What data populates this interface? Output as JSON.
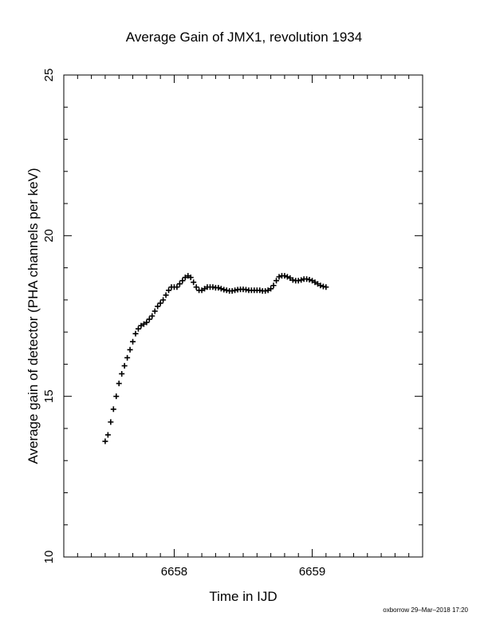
{
  "chart_data": {
    "type": "scatter",
    "title": "Average Gain of JMX1, revolution 1934",
    "xlabel": "Time in IJD",
    "ylabel": "Average gain of detector (PHA channels per keV)",
    "xlim": [
      6657.2,
      6659.8
    ],
    "ylim": [
      10,
      25
    ],
    "xticks": [
      6658,
      6659
    ],
    "yticks": [
      10,
      15,
      20,
      25
    ],
    "x_minor_step": 0.1,
    "y_minor_step": 1,
    "marker": "+",
    "marker_color": "#000000",
    "grid": false,
    "points": [
      [
        6657.5,
        13.6
      ],
      [
        6657.52,
        13.8
      ],
      [
        6657.54,
        14.2
      ],
      [
        6657.56,
        14.6
      ],
      [
        6657.58,
        15.0
      ],
      [
        6657.6,
        15.4
      ],
      [
        6657.62,
        15.7
      ],
      [
        6657.64,
        15.95
      ],
      [
        6657.66,
        16.2
      ],
      [
        6657.68,
        16.45
      ],
      [
        6657.7,
        16.7
      ],
      [
        6657.72,
        16.95
      ],
      [
        6657.74,
        17.1
      ],
      [
        6657.76,
        17.2
      ],
      [
        6657.78,
        17.25
      ],
      [
        6657.8,
        17.3
      ],
      [
        6657.82,
        17.4
      ],
      [
        6657.84,
        17.5
      ],
      [
        6657.86,
        17.65
      ],
      [
        6657.88,
        17.8
      ],
      [
        6657.9,
        17.9
      ],
      [
        6657.92,
        18.0
      ],
      [
        6657.94,
        18.15
      ],
      [
        6657.96,
        18.3
      ],
      [
        6657.98,
        18.4
      ],
      [
        6658.0,
        18.4
      ],
      [
        6658.02,
        18.4
      ],
      [
        6658.04,
        18.5
      ],
      [
        6658.06,
        18.6
      ],
      [
        6658.08,
        18.7
      ],
      [
        6658.1,
        18.75
      ],
      [
        6658.12,
        18.7
      ],
      [
        6658.14,
        18.55
      ],
      [
        6658.16,
        18.4
      ],
      [
        6658.18,
        18.3
      ],
      [
        6658.2,
        18.3
      ],
      [
        6658.22,
        18.35
      ],
      [
        6658.24,
        18.4
      ],
      [
        6658.26,
        18.4
      ],
      [
        6658.28,
        18.4
      ],
      [
        6658.3,
        18.38
      ],
      [
        6658.32,
        18.38
      ],
      [
        6658.34,
        18.35
      ],
      [
        6658.36,
        18.32
      ],
      [
        6658.38,
        18.3
      ],
      [
        6658.4,
        18.28
      ],
      [
        6658.42,
        18.28
      ],
      [
        6658.44,
        18.3
      ],
      [
        6658.46,
        18.32
      ],
      [
        6658.48,
        18.33
      ],
      [
        6658.5,
        18.33
      ],
      [
        6658.52,
        18.32
      ],
      [
        6658.54,
        18.3
      ],
      [
        6658.56,
        18.3
      ],
      [
        6658.58,
        18.3
      ],
      [
        6658.6,
        18.3
      ],
      [
        6658.62,
        18.3
      ],
      [
        6658.64,
        18.28
      ],
      [
        6658.66,
        18.28
      ],
      [
        6658.68,
        18.3
      ],
      [
        6658.7,
        18.35
      ],
      [
        6658.72,
        18.45
      ],
      [
        6658.74,
        18.6
      ],
      [
        6658.76,
        18.72
      ],
      [
        6658.78,
        18.75
      ],
      [
        6658.8,
        18.75
      ],
      [
        6658.82,
        18.72
      ],
      [
        6658.84,
        18.68
      ],
      [
        6658.86,
        18.62
      ],
      [
        6658.88,
        18.6
      ],
      [
        6658.9,
        18.6
      ],
      [
        6658.92,
        18.62
      ],
      [
        6658.94,
        18.65
      ],
      [
        6658.96,
        18.65
      ],
      [
        6658.98,
        18.63
      ],
      [
        6659.0,
        18.6
      ],
      [
        6659.02,
        18.55
      ],
      [
        6659.04,
        18.5
      ],
      [
        6659.06,
        18.45
      ],
      [
        6659.08,
        18.42
      ],
      [
        6659.1,
        18.4
      ]
    ]
  },
  "footer": "oxborrow 29–Mar–2018 17:20"
}
